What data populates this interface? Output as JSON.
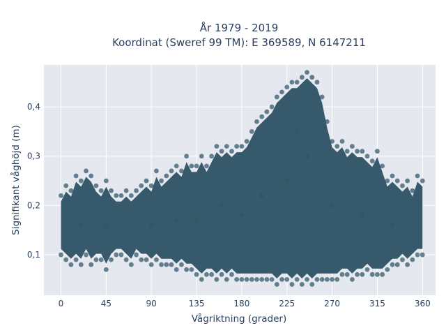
{
  "chart_data": {
    "type": "scatter",
    "title_lines": [
      "År 1979 - 2019",
      "Koordinat (Sweref 99 TM): E 369589, N 6147211"
    ],
    "xlabel": "Vågriktning (grader)",
    "ylabel": "Signifikant våghöjd (m)",
    "xlim": [
      -17,
      373
    ],
    "ylim": [
      0.018,
      0.485
    ],
    "x_ticks": [
      0,
      45,
      90,
      135,
      180,
      225,
      270,
      315,
      360
    ],
    "x_tick_labels": [
      "0",
      "45",
      "90",
      "135",
      "180",
      "225",
      "270",
      "315",
      "360"
    ],
    "y_ticks": [
      0.1,
      0.2,
      0.3,
      0.4
    ],
    "y_tick_labels": [
      "0,1",
      "0,2",
      "0,3",
      "0,4"
    ],
    "grid": true,
    "marker_color": "#2f5466",
    "plot_background": "#e5e8ef",
    "series": [
      {
        "values": [
          [
            0,
            0.1
          ],
          [
            0,
            0.22
          ],
          [
            5,
            0.09
          ],
          [
            5,
            0.24
          ],
          [
            10,
            0.08
          ],
          [
            10,
            0.23
          ],
          [
            15,
            0.09
          ],
          [
            15,
            0.26
          ],
          [
            20,
            0.08
          ],
          [
            20,
            0.25
          ],
          [
            25,
            0.1
          ],
          [
            25,
            0.27
          ],
          [
            30,
            0.08
          ],
          [
            30,
            0.26
          ],
          [
            35,
            0.09
          ],
          [
            35,
            0.24
          ],
          [
            40,
            0.09
          ],
          [
            40,
            0.23
          ],
          [
            45,
            0.07
          ],
          [
            45,
            0.25
          ],
          [
            50,
            0.09
          ],
          [
            50,
            0.23
          ],
          [
            55,
            0.1
          ],
          [
            55,
            0.22
          ],
          [
            60,
            0.1
          ],
          [
            60,
            0.22
          ],
          [
            65,
            0.09
          ],
          [
            65,
            0.23
          ],
          [
            70,
            0.08
          ],
          [
            70,
            0.22
          ],
          [
            75,
            0.1
          ],
          [
            75,
            0.23
          ],
          [
            80,
            0.09
          ],
          [
            80,
            0.24
          ],
          [
            85,
            0.09
          ],
          [
            85,
            0.25
          ],
          [
            90,
            0.08
          ],
          [
            90,
            0.24
          ],
          [
            95,
            0.09
          ],
          [
            95,
            0.27
          ],
          [
            100,
            0.08
          ],
          [
            100,
            0.25
          ],
          [
            105,
            0.08
          ],
          [
            105,
            0.26
          ],
          [
            110,
            0.08
          ],
          [
            110,
            0.27
          ],
          [
            115,
            0.07
          ],
          [
            115,
            0.28
          ],
          [
            120,
            0.08
          ],
          [
            120,
            0.27
          ],
          [
            125,
            0.07
          ],
          [
            125,
            0.3
          ],
          [
            130,
            0.07
          ],
          [
            130,
            0.28
          ],
          [
            135,
            0.06
          ],
          [
            135,
            0.28
          ],
          [
            140,
            0.05
          ],
          [
            140,
            0.3
          ],
          [
            145,
            0.06
          ],
          [
            145,
            0.28
          ],
          [
            150,
            0.06
          ],
          [
            150,
            0.3
          ],
          [
            155,
            0.05
          ],
          [
            155,
            0.32
          ],
          [
            160,
            0.06
          ],
          [
            160,
            0.31
          ],
          [
            165,
            0.05
          ],
          [
            165,
            0.32
          ],
          [
            170,
            0.06
          ],
          [
            170,
            0.31
          ],
          [
            175,
            0.05
          ],
          [
            175,
            0.32
          ],
          [
            180,
            0.05
          ],
          [
            180,
            0.32
          ],
          [
            185,
            0.05
          ],
          [
            185,
            0.33
          ],
          [
            190,
            0.05
          ],
          [
            190,
            0.35
          ],
          [
            195,
            0.05
          ],
          [
            195,
            0.37
          ],
          [
            200,
            0.05
          ],
          [
            200,
            0.38
          ],
          [
            205,
            0.05
          ],
          [
            205,
            0.39
          ],
          [
            210,
            0.05
          ],
          [
            210,
            0.4
          ],
          [
            215,
            0.04
          ],
          [
            215,
            0.42
          ],
          [
            220,
            0.05
          ],
          [
            220,
            0.43
          ],
          [
            225,
            0.05
          ],
          [
            225,
            0.44
          ],
          [
            230,
            0.04
          ],
          [
            230,
            0.45
          ],
          [
            235,
            0.05
          ],
          [
            235,
            0.45
          ],
          [
            240,
            0.04
          ],
          [
            240,
            0.46
          ],
          [
            245,
            0.05
          ],
          [
            245,
            0.47
          ],
          [
            250,
            0.04
          ],
          [
            250,
            0.46
          ],
          [
            255,
            0.05
          ],
          [
            255,
            0.45
          ],
          [
            260,
            0.05
          ],
          [
            260,
            0.42
          ],
          [
            265,
            0.05
          ],
          [
            265,
            0.37
          ],
          [
            270,
            0.05
          ],
          [
            270,
            0.33
          ],
          [
            275,
            0.05
          ],
          [
            275,
            0.32
          ],
          [
            280,
            0.06
          ],
          [
            280,
            0.33
          ],
          [
            285,
            0.06
          ],
          [
            285,
            0.31
          ],
          [
            290,
            0.05
          ],
          [
            290,
            0.32
          ],
          [
            295,
            0.06
          ],
          [
            295,
            0.31
          ],
          [
            300,
            0.06
          ],
          [
            300,
            0.31
          ],
          [
            305,
            0.07
          ],
          [
            305,
            0.3
          ],
          [
            310,
            0.06
          ],
          [
            310,
            0.29
          ],
          [
            315,
            0.06
          ],
          [
            315,
            0.31
          ],
          [
            320,
            0.06
          ],
          [
            320,
            0.28
          ],
          [
            325,
            0.07
          ],
          [
            325,
            0.25
          ],
          [
            330,
            0.08
          ],
          [
            330,
            0.26
          ],
          [
            335,
            0.08
          ],
          [
            335,
            0.25
          ],
          [
            340,
            0.09
          ],
          [
            340,
            0.24
          ],
          [
            345,
            0.08
          ],
          [
            345,
            0.25
          ],
          [
            350,
            0.09
          ],
          [
            350,
            0.23
          ],
          [
            355,
            0.1
          ],
          [
            355,
            0.26
          ],
          [
            360,
            0.1
          ],
          [
            360,
            0.25
          ],
          [
            225,
            0.25
          ],
          [
            235,
            0.35
          ],
          [
            245,
            0.3
          ],
          [
            180,
            0.18
          ],
          [
            135,
            0.17
          ],
          [
            90,
            0.16
          ],
          [
            45,
            0.16
          ],
          [
            300,
            0.18
          ],
          [
            330,
            0.16
          ],
          [
            270,
            0.2
          ],
          [
            200,
            0.22
          ],
          [
            160,
            0.2
          ],
          [
            115,
            0.17
          ],
          [
            20,
            0.16
          ]
        ]
      }
    ]
  }
}
